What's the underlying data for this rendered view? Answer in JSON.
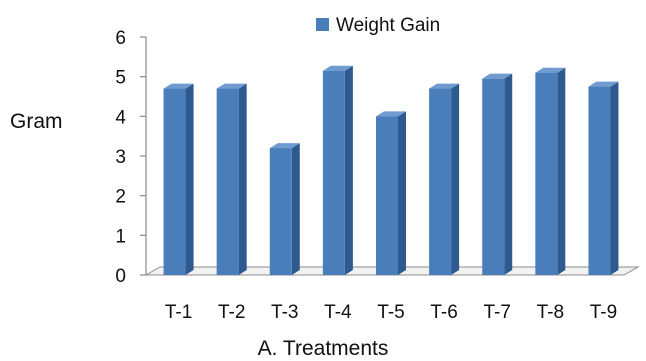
{
  "chart_data": {
    "type": "bar",
    "categories": [
      "T-1",
      "T-2",
      "T-3",
      "T-4",
      "T-5",
      "T-6",
      "T-7",
      "T-8",
      "T-9"
    ],
    "series": [
      {
        "name": "Weight Gain",
        "values": [
          4.7,
          4.7,
          3.2,
          5.15,
          4.0,
          4.7,
          4.95,
          5.1,
          4.75
        ]
      }
    ],
    "ylabel": "Gram",
    "xlabel": "A. Treatments",
    "ylim": [
      0,
      6
    ],
    "yticks": [
      "0",
      "1",
      "2",
      "3",
      "4",
      "5",
      "6"
    ],
    "grid": false,
    "legend_position": "top",
    "colors": {
      "bar_front": "#4a7ebb",
      "bar_side": "#2e5a8f",
      "bar_top": "#6f9bd0",
      "axis": "#8c8c8c",
      "floor": "#f2f2f2"
    }
  }
}
